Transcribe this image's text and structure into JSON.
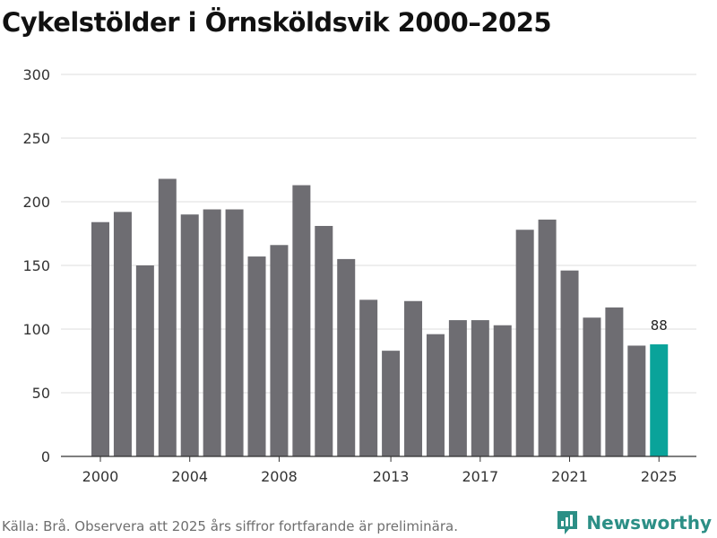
{
  "title": "Cykelstölder i Örnsköldsvik 2000–2025",
  "source": "Källa: Brå. Observera att 2025 års siffror fortfarande är preliminära.",
  "brand": {
    "name": "Newsworthy"
  },
  "colors": {
    "bar": "#6e6d72",
    "highlight": "#0aa39a",
    "grid": "#dddddd",
    "axis": "#333333",
    "brand": "#2c8f86"
  },
  "chart_data": {
    "type": "bar",
    "categories": [
      "2000",
      "2001",
      "2002",
      "2003",
      "2004",
      "2005",
      "2006",
      "2007",
      "2008",
      "2009",
      "2010",
      "2011",
      "2012",
      "2013",
      "2014",
      "2015",
      "2016",
      "2017",
      "2018",
      "2019",
      "2020",
      "2021",
      "2022",
      "2023",
      "2024",
      "2025"
    ],
    "values": [
      184,
      192,
      150,
      218,
      190,
      194,
      194,
      157,
      166,
      213,
      181,
      155,
      123,
      83,
      122,
      96,
      107,
      107,
      103,
      178,
      186,
      146,
      109,
      117,
      87,
      88
    ],
    "highlight_index": 25,
    "highlight_label": "88",
    "yticks": [
      0,
      50,
      100,
      150,
      200,
      250,
      300
    ],
    "xtick_labels": [
      "2000",
      "2004",
      "2008",
      "2013",
      "2017",
      "2021",
      "2025"
    ],
    "ylim": [
      0,
      300
    ],
    "xlabel": "",
    "ylabel": ""
  }
}
